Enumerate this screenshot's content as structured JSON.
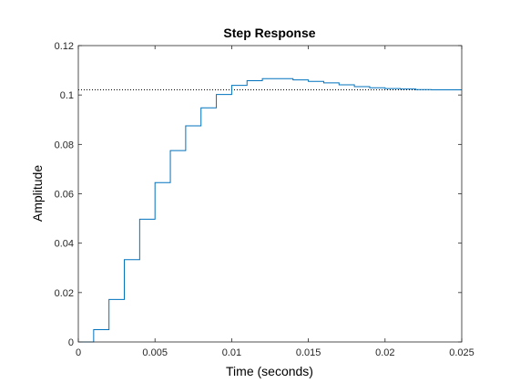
{
  "chart_data": {
    "type": "line",
    "title": "Step Response",
    "xlabel": "Time (seconds)",
    "ylabel": "Amplitude",
    "xlim": [
      0,
      0.025
    ],
    "ylim": [
      0,
      0.12
    ],
    "xticks": [
      "0",
      "0.005",
      "0.01",
      "0.015",
      "0.02",
      "0.025"
    ],
    "xtick_values": [
      0,
      0.005,
      0.01,
      0.015,
      0.02,
      0.025
    ],
    "yticks": [
      "0",
      "0.02",
      "0.04",
      "0.06",
      "0.08",
      "0.1",
      "0.12"
    ],
    "ytick_values": [
      0,
      0.02,
      0.04,
      0.06,
      0.08,
      0.1,
      0.12
    ],
    "grid": false,
    "series": [
      {
        "style": "stairs",
        "color": "#0072bd",
        "x": [
          0,
          0.001,
          0.002,
          0.003,
          0.004,
          0.005,
          0.006,
          0.007,
          0.008,
          0.009,
          0.01,
          0.011,
          0.012,
          0.013,
          0.014,
          0.015,
          0.016,
          0.017,
          0.018,
          0.019,
          0.02,
          0.021,
          0.022,
          0.023,
          0.024
        ],
        "y": [
          0,
          0.005,
          0.0172,
          0.0333,
          0.0497,
          0.0645,
          0.0775,
          0.0875,
          0.0948,
          0.1002,
          0.1039,
          0.1058,
          0.1066,
          0.1066,
          0.1061,
          0.1055,
          0.1049,
          0.1041,
          0.1034,
          0.1029,
          0.1026,
          0.1024,
          0.1022,
          0.1021,
          0.1021
        ]
      }
    ],
    "reference_line": {
      "y": 0.1021,
      "style": "dotted",
      "color": "#000000"
    }
  }
}
